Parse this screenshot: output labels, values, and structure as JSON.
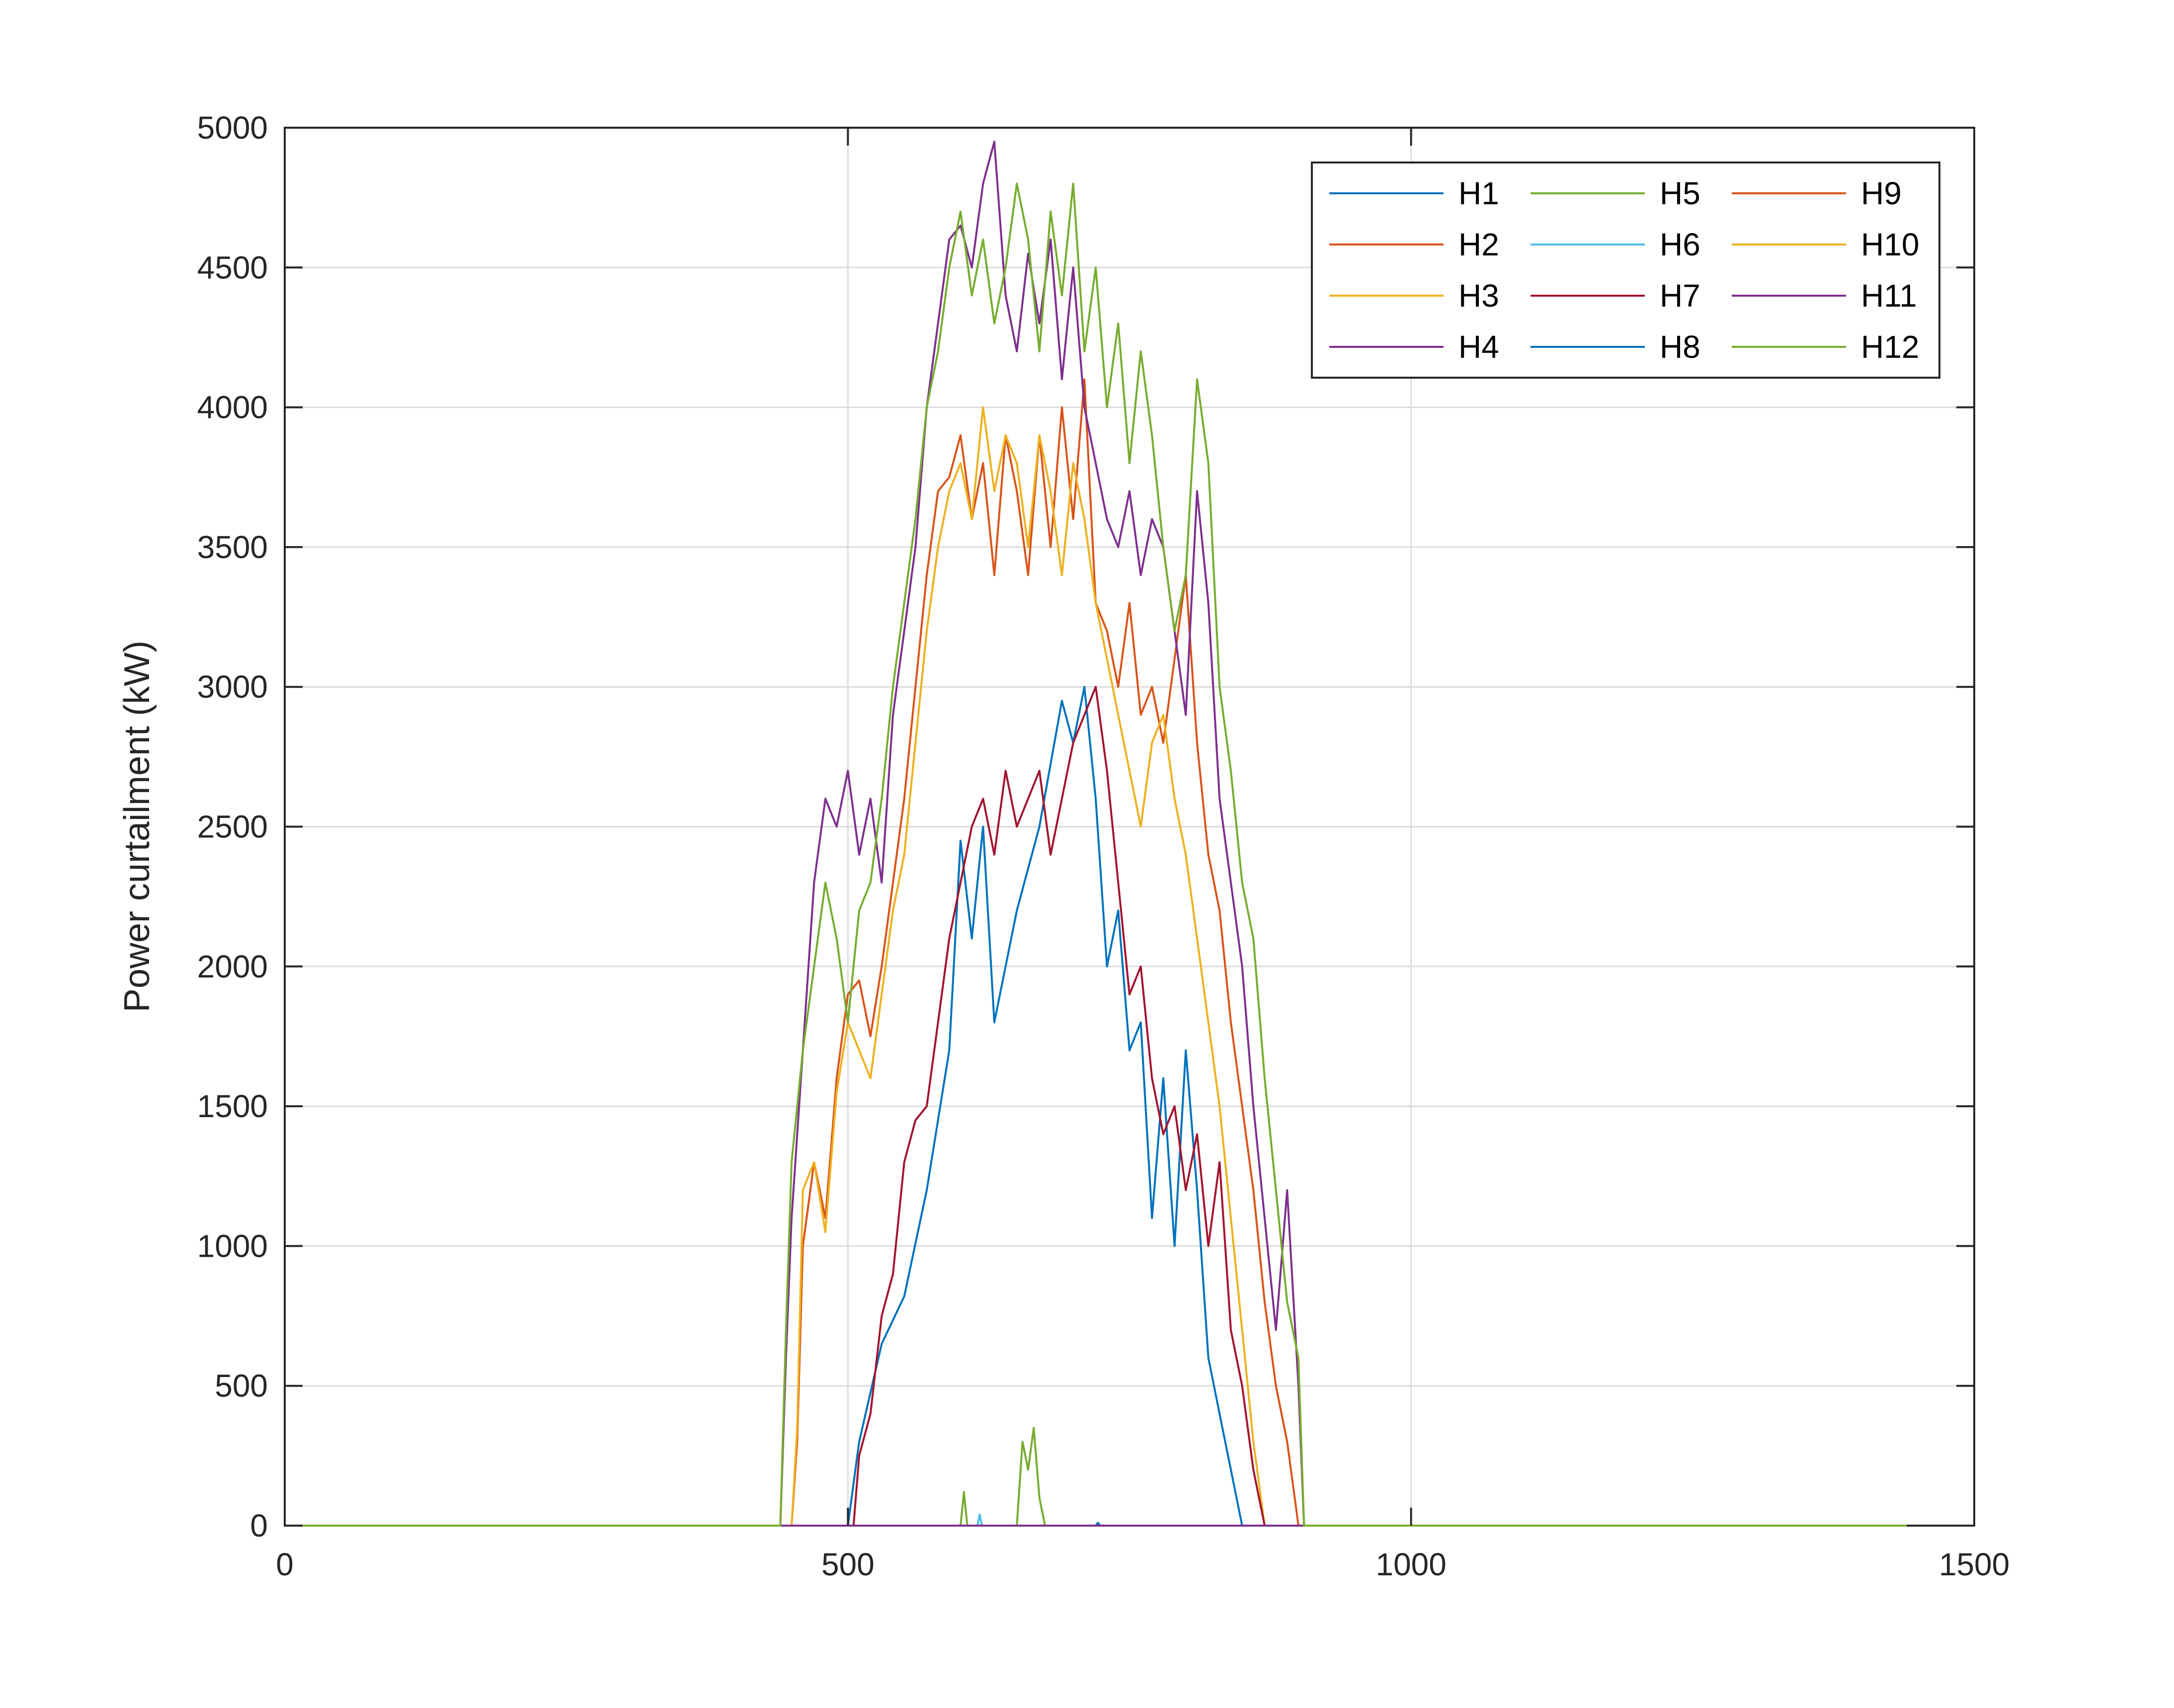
{
  "chart_data": {
    "type": "line",
    "title": "",
    "xlabel": "",
    "ylabel": "Power curtailment (kW)",
    "xlim": [
      0,
      1500
    ],
    "ylim": [
      0,
      5000
    ],
    "xticks": [
      0,
      500,
      1000,
      1500
    ],
    "yticks": [
      0,
      500,
      1000,
      1500,
      2000,
      2500,
      3000,
      3500,
      4000,
      4500,
      5000
    ],
    "grid": true,
    "legend_position": "top-right",
    "legend_columns": 3,
    "series": [
      {
        "name": "H1",
        "color": "#0072BD",
        "x": [
          0,
          500,
          510,
          530,
          550,
          570,
          590,
          600,
          610,
          620,
          630,
          650,
          670,
          690,
          700,
          710,
          720,
          730,
          740,
          750,
          760,
          770,
          780,
          790,
          800,
          810,
          820,
          830,
          840,
          850,
          860,
          870,
          880,
          890,
          1440
        ],
        "y": [
          0,
          0,
          300,
          650,
          820,
          1200,
          1700,
          2450,
          2100,
          2500,
          1800,
          2200,
          2500,
          2950,
          2800,
          3000,
          2600,
          2000,
          2200,
          1700,
          1800,
          1100,
          1600,
          1000,
          1700,
          1200,
          600,
          400,
          200,
          0,
          0,
          0,
          0,
          0,
          0
        ]
      },
      {
        "name": "H2",
        "color": "#D95319",
        "x": [
          0,
          450,
          455,
          460,
          470,
          480,
          490,
          500,
          510,
          520,
          530,
          540,
          550,
          560,
          570,
          580,
          590,
          600,
          610,
          620,
          630,
          640,
          650,
          660,
          670,
          680,
          690,
          700,
          710,
          720,
          730,
          740,
          750,
          760,
          770,
          780,
          790,
          800,
          810,
          820,
          830,
          840,
          850,
          860,
          870,
          880,
          890,
          900,
          1440
        ],
        "y": [
          0,
          0,
          300,
          1000,
          1300,
          1100,
          1600,
          1900,
          1950,
          1750,
          2000,
          2300,
          2600,
          3000,
          3400,
          3700,
          3750,
          3900,
          3600,
          3800,
          3400,
          3900,
          3700,
          3400,
          3900,
          3500,
          4000,
          3600,
          4100,
          3300,
          3200,
          3000,
          3300,
          2900,
          3000,
          2800,
          3100,
          3400,
          2800,
          2400,
          2200,
          1800,
          1500,
          1200,
          800,
          500,
          300,
          0,
          0
        ]
      },
      {
        "name": "H3",
        "color": "#EDB120",
        "x": [
          0,
          450,
          455,
          460,
          470,
          480,
          490,
          500,
          510,
          520,
          530,
          540,
          550,
          560,
          570,
          580,
          590,
          600,
          610,
          620,
          630,
          640,
          650,
          660,
          670,
          680,
          690,
          700,
          710,
          720,
          730,
          740,
          750,
          760,
          770,
          780,
          790,
          800,
          810,
          820,
          830,
          840,
          850,
          860,
          870,
          880,
          890,
          1440
        ],
        "y": [
          0,
          0,
          350,
          1200,
          1300,
          1050,
          1550,
          1800,
          1700,
          1600,
          1900,
          2200,
          2400,
          2800,
          3200,
          3500,
          3700,
          3800,
          3600,
          4000,
          3700,
          3900,
          3800,
          3500,
          3900,
          3700,
          3400,
          3800,
          3600,
          3300,
          3100,
          2900,
          2700,
          2500,
          2800,
          2900,
          2600,
          2400,
          2100,
          1800,
          1500,
          1100,
          700,
          300,
          0,
          0,
          0,
          0
        ]
      },
      {
        "name": "H4",
        "color": "#7E2F8E",
        "x": [
          0,
          440,
          445,
          450,
          460,
          470,
          480,
          490,
          500,
          510,
          520,
          530,
          540,
          550,
          560,
          570,
          580,
          590,
          600,
          610,
          620,
          630,
          640,
          650,
          660,
          670,
          680,
          690,
          700,
          710,
          720,
          730,
          740,
          750,
          760,
          770,
          780,
          790,
          800,
          810,
          820,
          830,
          840,
          850,
          860,
          870,
          880,
          890,
          900,
          905,
          1440
        ],
        "y": [
          0,
          0,
          600,
          1100,
          1700,
          2300,
          2600,
          2500,
          2700,
          2400,
          2600,
          2300,
          2900,
          3200,
          3500,
          4000,
          4300,
          4600,
          4650,
          4500,
          4800,
          4950,
          4400,
          4200,
          4550,
          4300,
          4600,
          4100,
          4500,
          4000,
          3800,
          3600,
          3500,
          3700,
          3400,
          3600,
          3500,
          3200,
          2900,
          3700,
          3300,
          2600,
          2300,
          2000,
          1500,
          1100,
          700,
          1200,
          500,
          0,
          0
        ]
      },
      {
        "name": "H5",
        "color": "#77AC30",
        "x": [
          0,
          600,
          603,
          606,
          650,
          655,
          660,
          665,
          670,
          675,
          1440
        ],
        "y": [
          0,
          0,
          120,
          0,
          0,
          300,
          200,
          350,
          100,
          0,
          0
        ]
      },
      {
        "name": "H6",
        "color": "#4DBEEE",
        "x": [
          0,
          615,
          617,
          619,
          1440
        ],
        "y": [
          0,
          0,
          40,
          0,
          0
        ]
      },
      {
        "name": "H7",
        "color": "#A2142F",
        "x": [
          0,
          505,
          510,
          520,
          530,
          540,
          550,
          560,
          570,
          580,
          590,
          600,
          610,
          620,
          630,
          640,
          650,
          660,
          670,
          680,
          690,
          700,
          710,
          720,
          730,
          740,
          750,
          760,
          770,
          780,
          790,
          800,
          810,
          820,
          830,
          840,
          850,
          860,
          870,
          880,
          890,
          1440
        ],
        "y": [
          0,
          0,
          250,
          400,
          750,
          900,
          1300,
          1450,
          1500,
          1800,
          2100,
          2300,
          2500,
          2600,
          2400,
          2700,
          2500,
          2600,
          2700,
          2400,
          2600,
          2800,
          2900,
          3000,
          2700,
          2300,
          1900,
          2000,
          1600,
          1400,
          1500,
          1200,
          1400,
          1000,
          1300,
          700,
          500,
          200,
          0,
          0,
          0,
          0
        ]
      },
      {
        "name": "H8",
        "color": "#0072BD",
        "x": [
          0,
          720,
          722,
          724,
          1440
        ],
        "y": [
          0,
          0,
          10,
          0,
          0
        ]
      },
      {
        "name": "H9",
        "color": "#D95319",
        "x": [
          0,
          1440
        ],
        "y": [
          0,
          0
        ]
      },
      {
        "name": "H10",
        "color": "#EDB120",
        "x": [
          0,
          1440
        ],
        "y": [
          0,
          0
        ]
      },
      {
        "name": "H11",
        "color": "#7E2F8E",
        "x": [
          0,
          1440
        ],
        "y": [
          0,
          0
        ]
      },
      {
        "name": "H12",
        "color": "#77AC30",
        "x": [
          0,
          440,
          445,
          450,
          460,
          470,
          480,
          490,
          500,
          510,
          520,
          530,
          540,
          550,
          560,
          570,
          580,
          590,
          600,
          610,
          620,
          630,
          640,
          650,
          660,
          670,
          680,
          690,
          700,
          710,
          720,
          730,
          740,
          750,
          760,
          770,
          780,
          790,
          800,
          810,
          820,
          830,
          840,
          850,
          860,
          870,
          880,
          890,
          900,
          905,
          1440
        ],
        "y": [
          0,
          0,
          700,
          1300,
          1700,
          2000,
          2300,
          2100,
          1800,
          2200,
          2300,
          2600,
          3000,
          3300,
          3600,
          4000,
          4200,
          4500,
          4700,
          4400,
          4600,
          4300,
          4500,
          4800,
          4600,
          4200,
          4700,
          4400,
          4800,
          4200,
          4500,
          4000,
          4300,
          3800,
          4200,
          3900,
          3500,
          3200,
          3400,
          4100,
          3800,
          3000,
          2700,
          2300,
          2100,
          1600,
          1200,
          800,
          600,
          0,
          0
        ]
      }
    ]
  }
}
